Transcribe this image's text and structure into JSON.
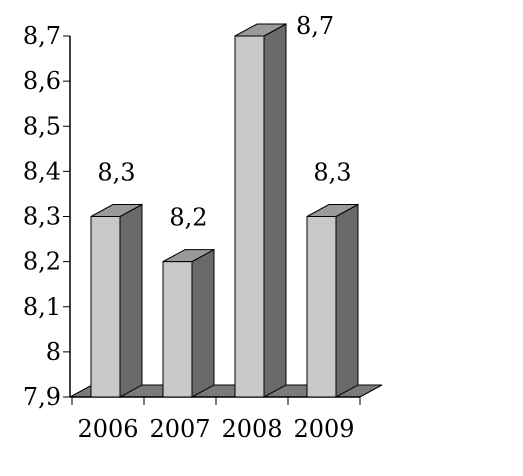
{
  "chart_data": {
    "type": "bar",
    "categories": [
      "2006",
      "2007",
      "2008",
      "2009"
    ],
    "values": [
      8.3,
      8.2,
      8.7,
      8.3
    ],
    "data_labels": [
      "8,3",
      "8,2",
      "8,7",
      "8,3"
    ],
    "yticks": [
      7.9,
      8,
      8.1,
      8.2,
      8.3,
      8.4,
      8.5,
      8.6,
      8.7
    ],
    "ytick_labels": [
      "7,9",
      "8",
      "8,1",
      "8,2",
      "8,3",
      "8,4",
      "8,5",
      "8,6",
      "8,7"
    ],
    "ylim": [
      7.9,
      8.7
    ],
    "title": "",
    "xlabel": "",
    "ylabel": "",
    "grid": false,
    "style": "3d",
    "colors": {
      "bar_front": "#c8c8c8",
      "bar_top": "#9a9a9a",
      "bar_side": "#6a6a6a",
      "floor": "#7a7a7a",
      "axis": "#000000"
    }
  }
}
